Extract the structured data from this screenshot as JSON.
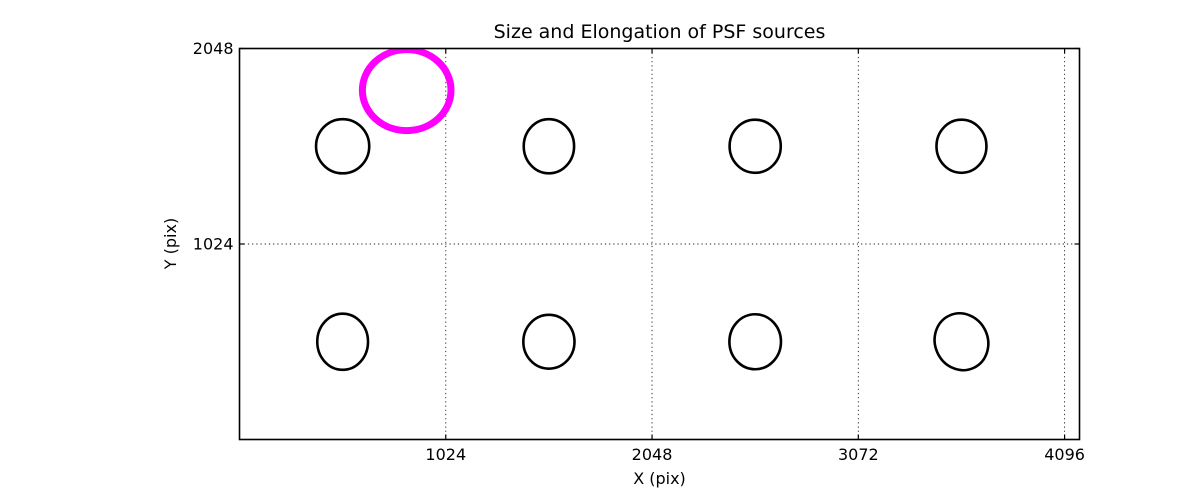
{
  "chart_data": {
    "type": "scatter",
    "title": "Size and Elongation of PSF sources",
    "xlabel": "X (pix)",
    "ylabel": "Y (pix)",
    "xlim": [
      0,
      4170
    ],
    "ylim": [
      0,
      2048
    ],
    "x_ticks": [
      1024,
      2048,
      3072,
      4096
    ],
    "y_ticks": [
      1024,
      2048
    ],
    "grid": {
      "style": "dotted",
      "color": "#000000"
    },
    "legend_position": "none",
    "marker": "ellipse-outline",
    "sources": [
      {
        "x": 512,
        "y": 1536,
        "a": 132,
        "b": 142,
        "angle": 0
      },
      {
        "x": 1536,
        "y": 1536,
        "a": 125,
        "b": 142,
        "angle": 0
      },
      {
        "x": 2560,
        "y": 1536,
        "a": 127,
        "b": 139,
        "angle": 0
      },
      {
        "x": 3584,
        "y": 1536,
        "a": 124,
        "b": 139,
        "angle": 0
      },
      {
        "x": 512,
        "y": 512,
        "a": 126,
        "b": 147,
        "angle": 0
      },
      {
        "x": 1536,
        "y": 512,
        "a": 127,
        "b": 141,
        "angle": 0
      },
      {
        "x": 2560,
        "y": 512,
        "a": 128,
        "b": 144,
        "angle": 0
      },
      {
        "x": 3584,
        "y": 512,
        "a": 131,
        "b": 151,
        "angle": -25
      }
    ],
    "highlight_source": {
      "x": 830,
      "y": 1830,
      "a": 220,
      "b": 212,
      "angle": 0
    },
    "colors": {
      "source": "#000000",
      "highlight": "#ff00ff",
      "axis": "#000000",
      "grid": "#000000",
      "background": "#ffffff"
    },
    "line_widths": {
      "source": 2.6,
      "highlight": 7,
      "axis": 1.6,
      "grid": 0.9
    }
  }
}
